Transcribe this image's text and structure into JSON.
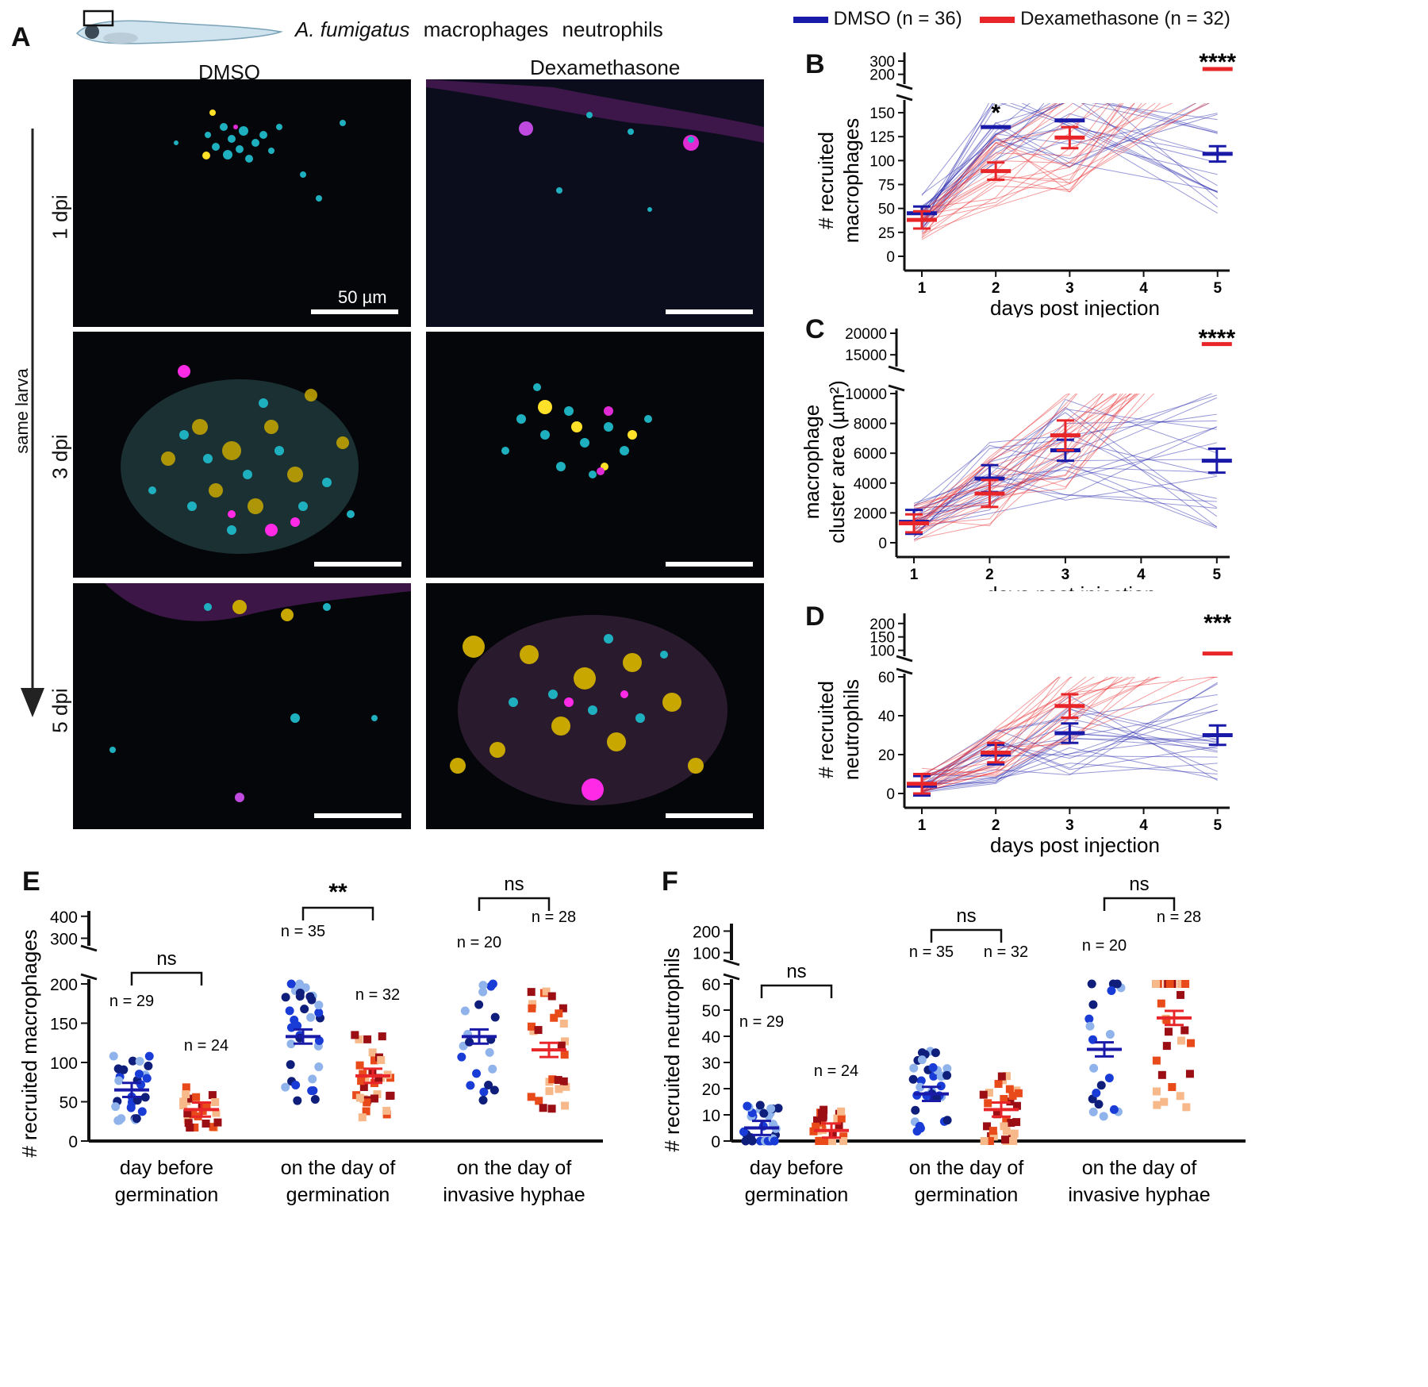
{
  "panel_a": {
    "letter": "A",
    "legend": {
      "fungus": "A. fumigatus",
      "macrophages": "macrophages",
      "neutrophils": "neutrophils",
      "fungus_color": "#e01ee0",
      "macrophage_color": "#22b6e0",
      "neutrophil_color": "#c8b400"
    },
    "conditions": [
      "DMSO",
      "Dexamethasone"
    ],
    "timepoints": [
      "1 dpi",
      "3 dpi",
      "5 dpi"
    ],
    "arrow_label": "same larva",
    "scale_label": "50 µm"
  },
  "top_legend": {
    "dmso": "DMSO (n = 36)",
    "dex": "Dexamethasone (n = 32)",
    "dmso_color": "#1a1aa8",
    "dex_color": "#e8262a"
  },
  "chart_data": [
    {
      "id": "B",
      "type": "line",
      "title": "",
      "ylabel": "# recruited macrophages",
      "xlabel": "days post injection",
      "x": [
        1,
        2,
        3,
        4,
        5
      ],
      "yticks_lower": [
        0,
        25,
        50,
        75,
        100,
        125,
        150
      ],
      "yticks_upper": [
        200,
        300
      ],
      "ylim_lower": [
        0,
        160
      ],
      "ylim_upper": [
        150,
        350
      ],
      "series": [
        {
          "name": "DMSO",
          "x": [
            1,
            2,
            3,
            5
          ],
          "mean": [
            45,
            135,
            142,
            107
          ],
          "sem": [
            7,
            0,
            0,
            8
          ]
        },
        {
          "name": "Dexamethasone",
          "x": [
            1,
            2,
            3,
            5
          ],
          "mean": [
            38,
            89,
            124,
            240
          ],
          "sem": [
            9,
            9,
            11,
            0
          ]
        }
      ],
      "annotations": [
        {
          "x": 2,
          "text": "*"
        },
        {
          "x": 5,
          "text": "****"
        }
      ]
    },
    {
      "id": "C",
      "type": "line",
      "ylabel": "macrophage cluster area (µm²)",
      "xlabel": "days post injection",
      "x": [
        1,
        2,
        3,
        4,
        5
      ],
      "yticks_lower": [
        0,
        2000,
        4000,
        6000,
        8000,
        10000
      ],
      "yticks_upper": [
        15000,
        20000
      ],
      "series": [
        {
          "name": "DMSO",
          "x": [
            1,
            2,
            3,
            5
          ],
          "mean": [
            1400,
            4300,
            6200,
            5500
          ],
          "sem": [
            800,
            900,
            700,
            800
          ]
        },
        {
          "name": "Dexamethasone",
          "x": [
            1,
            2,
            3,
            5
          ],
          "mean": [
            1300,
            3300,
            7200,
            17500
          ],
          "sem": [
            600,
            900,
            1000,
            0
          ]
        }
      ],
      "annotations": [
        {
          "x": 5,
          "text": "****"
        }
      ]
    },
    {
      "id": "D",
      "type": "line",
      "ylabel": "# recruited neutrophils",
      "xlabel": "days post injection",
      "x": [
        1,
        2,
        3,
        4,
        5
      ],
      "yticks_lower": [
        0,
        20,
        40,
        60
      ],
      "yticks_upper": [
        100,
        150,
        200
      ],
      "series": [
        {
          "name": "DMSO",
          "x": [
            1,
            2,
            3,
            5
          ],
          "mean": [
            4,
            20,
            31,
            30
          ],
          "sem": [
            5,
            5,
            5,
            5
          ]
        },
        {
          "name": "Dexamethasone",
          "x": [
            1,
            2,
            3,
            5
          ],
          "mean": [
            5,
            21,
            45,
            88
          ],
          "sem": [
            5,
            5,
            6,
            0
          ]
        }
      ],
      "annotations": [
        {
          "x": 5,
          "text": "***"
        }
      ]
    },
    {
      "id": "E",
      "type": "scatter",
      "ylabel": "# recruited macrophages",
      "yticks_lower": [
        0,
        50,
        100,
        150,
        200
      ],
      "yticks_upper": [
        300,
        400
      ],
      "categories": [
        "day before germination",
        "on the day of germination",
        "on the day of invasive hyphae"
      ],
      "groups": [
        {
          "dmso_n": "n = 29",
          "dex_n": "n = 24",
          "dmso_mean": 65,
          "dex_mean": 40,
          "sig": "ns"
        },
        {
          "dmso_n": "n = 35",
          "dex_n": "n = 32",
          "dmso_mean": 133,
          "dex_mean": 83,
          "sig": "**"
        },
        {
          "dmso_n": "n = 20",
          "dex_n": "n = 28",
          "dmso_mean": 133,
          "dex_mean": 116,
          "sig": "ns"
        }
      ]
    },
    {
      "id": "F",
      "type": "scatter",
      "ylabel": "# recruited neutrophils",
      "yticks_lower": [
        0,
        10,
        20,
        30,
        40,
        50,
        60
      ],
      "yticks_upper": [
        100,
        200
      ],
      "categories": [
        "day before germination",
        "on the day of germination",
        "on the day of invasive hyphae"
      ],
      "groups": [
        {
          "dmso_n": "n = 29",
          "dex_n": "n = 24",
          "dmso_mean": 5,
          "dex_mean": 4,
          "sig": "ns"
        },
        {
          "dmso_n": "n = 35",
          "dex_n": "n = 32",
          "dmso_mean": 18,
          "dex_mean": 12,
          "sig": "ns"
        },
        {
          "dmso_n": "n = 20",
          "dex_n": "n = 28",
          "dmso_mean": 35,
          "dex_mean": 47,
          "sig": "ns"
        }
      ]
    }
  ],
  "x_category_lines": {
    "g1": [
      "day before",
      "germination"
    ],
    "g2": [
      "on the day of",
      "germination"
    ],
    "g3": [
      "on the day of",
      "invasive hyphae"
    ]
  }
}
